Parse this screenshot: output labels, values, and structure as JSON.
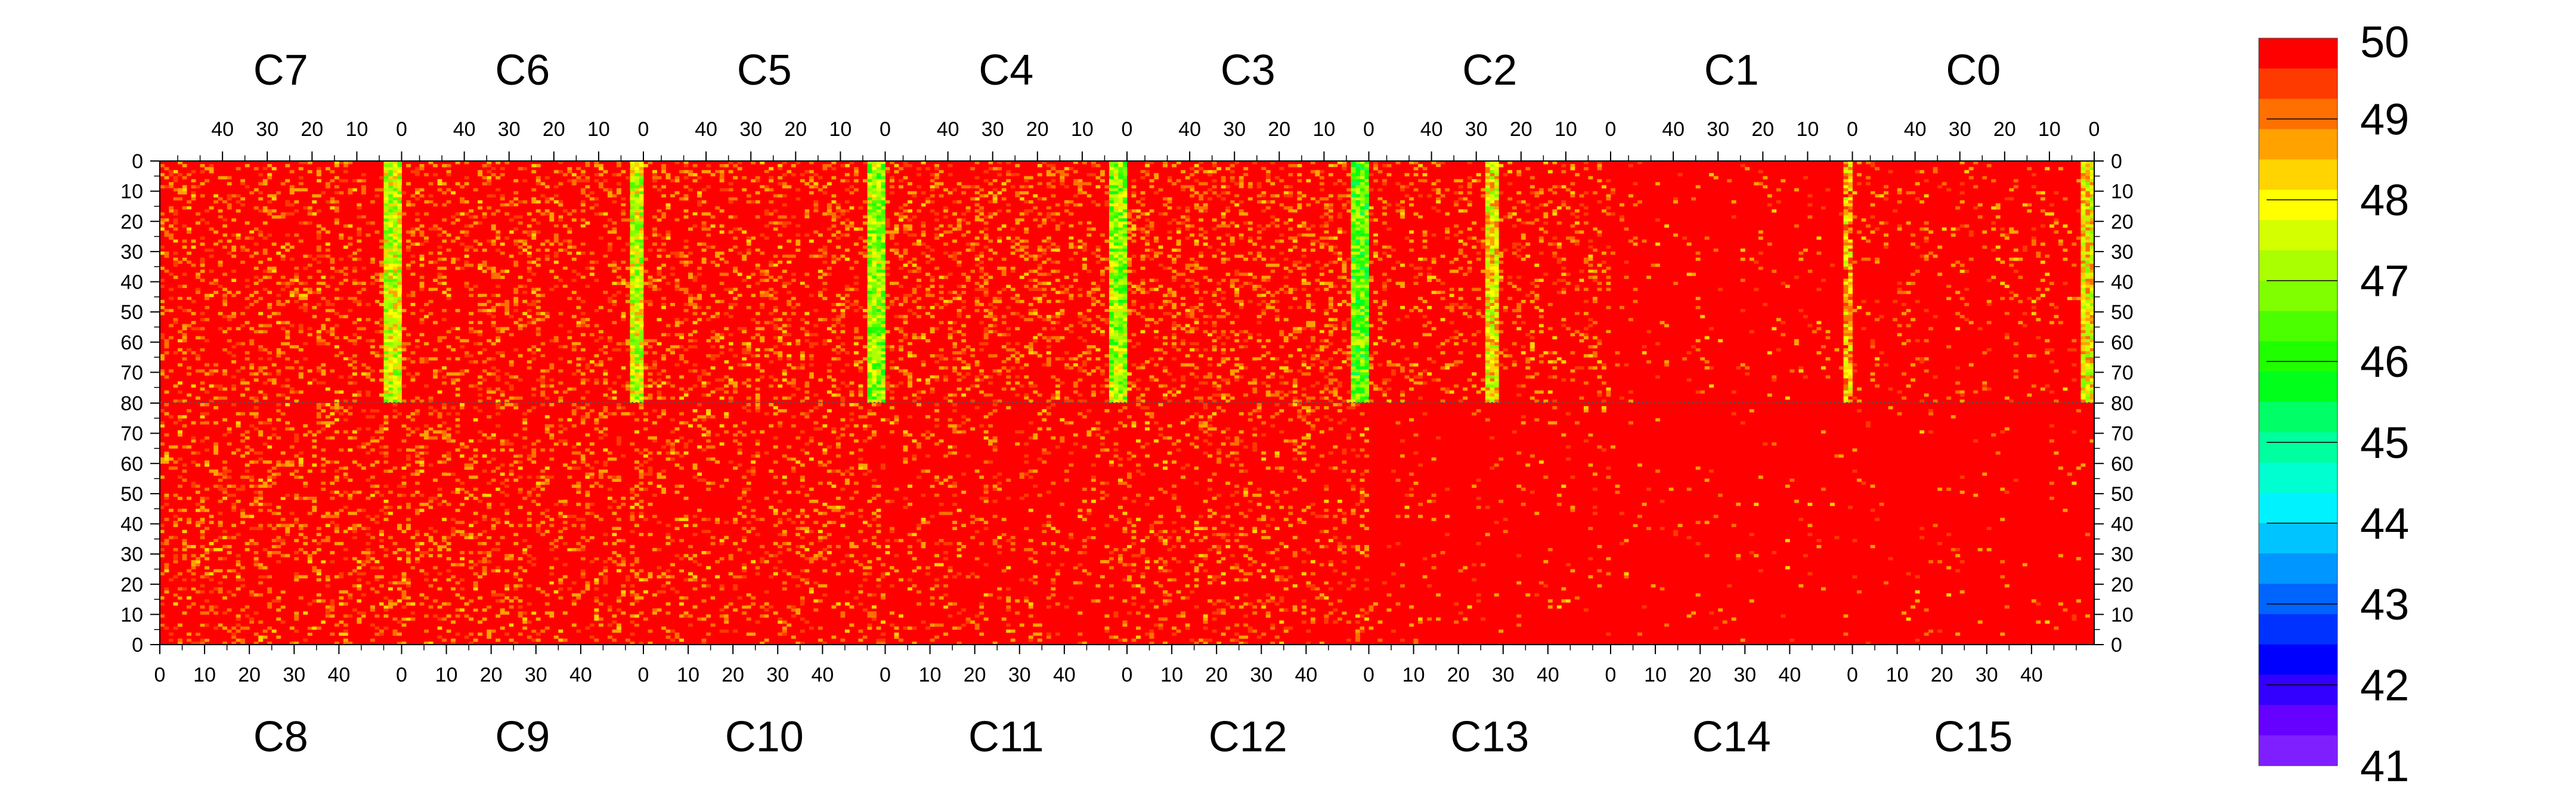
{
  "chart_data": {
    "type": "heatmap",
    "title": "",
    "xlabel": "",
    "ylabel": "",
    "chips_top": [
      "C7",
      "C6",
      "C5",
      "C4",
      "C3",
      "C2",
      "C1",
      "C0"
    ],
    "chips_bottom": [
      "C8",
      "C9",
      "C10",
      "C11",
      "C12",
      "C13",
      "C14",
      "C15"
    ],
    "columns_per_chip": 54,
    "rows_per_half": 80,
    "top_axis": {
      "direction": "reversed",
      "range": [
        54,
        0
      ],
      "ticks": [
        40,
        30,
        20,
        10,
        0
      ]
    },
    "bottom_axis": {
      "direction": "normal",
      "range": [
        0,
        54
      ],
      "ticks": [
        0,
        10,
        20,
        30,
        40
      ]
    },
    "top_half_y": {
      "direction": "top-down",
      "range": [
        0,
        80
      ],
      "ticks": [
        0,
        10,
        20,
        30,
        40,
        50,
        60,
        70,
        80
      ]
    },
    "bottom_half_y": {
      "direction": "bottom-up",
      "range": [
        0,
        80
      ],
      "ticks": [
        80,
        70,
        60,
        50,
        40,
        30,
        20,
        10,
        0
      ]
    },
    "z_range": [
      41,
      50
    ],
    "colorbar": {
      "ticks": [
        50,
        49,
        48,
        47,
        46,
        45,
        44,
        43,
        42,
        41
      ],
      "colors": [
        "#ff0000",
        "#ff3a00",
        "#ff7000",
        "#ffa200",
        "#ffd400",
        "#ffff00",
        "#d4ff00",
        "#aaff00",
        "#7fff00",
        "#4cff00",
        "#1fff00",
        "#00ff1a",
        "#00ff66",
        "#00ff9e",
        "#00ffd0",
        "#00f2ff",
        "#00c4ff",
        "#0096ff",
        "#0064ff",
        "#0032ff",
        "#0000ff",
        "#3300ff",
        "#6600ff",
        "#7f1fff"
      ]
    },
    "low_value_columns": [
      {
        "chip": "C7",
        "description": "columns 0-3",
        "typical_value": 47.5
      },
      {
        "chip": "C6",
        "description": "columns 0-2",
        "typical_value": 47.5
      },
      {
        "chip": "C5",
        "description": "columns 0-3",
        "typical_value": 47
      },
      {
        "chip": "C4",
        "description": "columns 0-3",
        "typical_value": 47
      },
      {
        "chip": "C3",
        "description": "columns 0-3",
        "typical_value": 46.5
      },
      {
        "chip": "C2",
        "description": "columns 25-27",
        "typical_value": 48
      },
      {
        "chip": "C1",
        "description": "columns 0-1",
        "typical_value": 48.5
      },
      {
        "chip": "C0",
        "description": "columns 0-2",
        "typical_value": 48
      }
    ],
    "background_value": 50
  }
}
